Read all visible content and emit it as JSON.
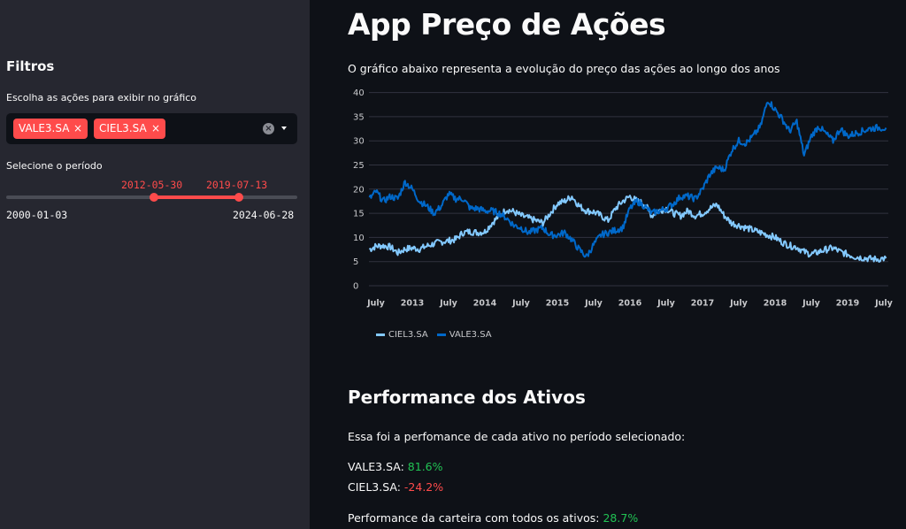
{
  "sidebar": {
    "title": "Filtros",
    "multiselect": {
      "label": "Escolha as ações para exibir no gráfico",
      "tags": [
        {
          "label": "VALE3.SA",
          "remove": "×"
        },
        {
          "label": "CIEL3.SA",
          "remove": "×"
        }
      ],
      "clear_icon": "×"
    },
    "slider": {
      "label": "Selecione o período",
      "min": "2000-01-03",
      "max": "2024-06-28",
      "start": "2012-05-30",
      "end": "2019-07-13"
    }
  },
  "main": {
    "title": "App Preço de Ações",
    "subtitle": "O gráfico abaixo representa a evolução do preço das ações ao longo dos anos",
    "performance": {
      "heading": "Performance dos Ativos",
      "intro": "Essa foi a perfomance de cada ativo no período selecionado:",
      "assets": [
        {
          "ticker": "VALE3.SA:",
          "value": "81.6%",
          "status": "positive"
        },
        {
          "ticker": "CIEL3.SA:",
          "value": "-24.2%",
          "status": "negative"
        }
      ],
      "portfolio_label": "Performance da carteira com todos os ativos:",
      "portfolio_value": "28.7%"
    }
  },
  "colors": {
    "accent": "#ff4b4b",
    "positive": "#21c354",
    "negative": "#ff4b4b",
    "ciel3": "#83c9ff",
    "vale3": "#0068c9"
  },
  "chart_data": {
    "type": "line",
    "title": "",
    "xlabel": "",
    "ylabel": "",
    "ylim": [
      0,
      40
    ],
    "yticks": [
      0,
      5,
      10,
      15,
      20,
      25,
      30,
      35,
      40
    ],
    "xticks": [
      "July",
      "2013",
      "July",
      "2014",
      "July",
      "2015",
      "July",
      "2016",
      "July",
      "2017",
      "July",
      "2018",
      "July",
      "2019",
      "July"
    ],
    "grid": true,
    "legend_position": "bottom-left",
    "x": [
      2012.41,
      2012.5,
      2012.6,
      2012.7,
      2012.8,
      2012.9,
      2013.0,
      2013.1,
      2013.2,
      2013.3,
      2013.4,
      2013.5,
      2013.6,
      2013.7,
      2013.8,
      2013.9,
      2014.0,
      2014.1,
      2014.2,
      2014.3,
      2014.4,
      2014.5,
      2014.6,
      2014.7,
      2014.8,
      2014.9,
      2015.0,
      2015.1,
      2015.2,
      2015.3,
      2015.4,
      2015.5,
      2015.6,
      2015.7,
      2015.8,
      2015.9,
      2016.0,
      2016.1,
      2016.2,
      2016.3,
      2016.4,
      2016.5,
      2016.6,
      2016.7,
      2016.8,
      2016.9,
      2017.0,
      2017.1,
      2017.2,
      2017.3,
      2017.4,
      2017.5,
      2017.6,
      2017.7,
      2017.8,
      2017.9,
      2018.0,
      2018.1,
      2018.2,
      2018.3,
      2018.4,
      2018.5,
      2018.6,
      2018.7,
      2018.8,
      2018.9,
      2019.0,
      2019.1,
      2019.2,
      2019.3,
      2019.4,
      2019.53
    ],
    "series": [
      {
        "name": "CIEL3.SA",
        "color": "#83c9ff",
        "values": [
          7.5,
          8.2,
          8.3,
          8.0,
          6.8,
          7.6,
          7.8,
          7.6,
          8.2,
          8.7,
          9.1,
          9.3,
          9.6,
          11.0,
          11.2,
          11.0,
          11.2,
          13.0,
          14.5,
          15.8,
          15.3,
          14.5,
          14.0,
          13.5,
          13.0,
          15.0,
          17.0,
          17.5,
          18.5,
          16.5,
          15.5,
          15.3,
          14.5,
          13.5,
          16.0,
          17.5,
          18.5,
          17.5,
          17.0,
          14.5,
          15.5,
          16.0,
          15.0,
          14.5,
          15.5,
          14.5,
          15.0,
          16.0,
          16.8,
          14.5,
          13.0,
          12.5,
          12.0,
          11.5,
          11.0,
          10.5,
          10.0,
          9.0,
          8.3,
          8.0,
          7.0,
          6.5,
          7.0,
          7.5,
          7.8,
          7.0,
          6.5,
          6.0,
          5.8,
          5.6,
          5.5,
          5.7
        ]
      },
      {
        "name": "VALE3.SA",
        "color": "#0068c9",
        "values": [
          18.0,
          19.5,
          17.5,
          18.5,
          18.0,
          21.5,
          20.0,
          17.5,
          16.5,
          15.0,
          16.5,
          19.0,
          18.0,
          18.0,
          16.0,
          16.0,
          15.5,
          15.5,
          15.0,
          14.0,
          12.5,
          12.0,
          11.0,
          11.5,
          12.0,
          10.5,
          10.5,
          11.0,
          9.5,
          7.5,
          6.0,
          8.5,
          10.5,
          11.0,
          11.5,
          12.0,
          16.0,
          17.5,
          16.5,
          15.0,
          15.5,
          16.0,
          17.0,
          18.5,
          18.5,
          18.0,
          20.0,
          23.0,
          24.5,
          24.0,
          28.0,
          30.0,
          29.5,
          31.0,
          33.0,
          38.5,
          36.5,
          34.5,
          32.0,
          34.0,
          27.0,
          31.0,
          33.0,
          31.5,
          30.0,
          32.5,
          31.0,
          31.5,
          32.0,
          32.5,
          32.7,
          32.7
        ]
      }
    ]
  }
}
